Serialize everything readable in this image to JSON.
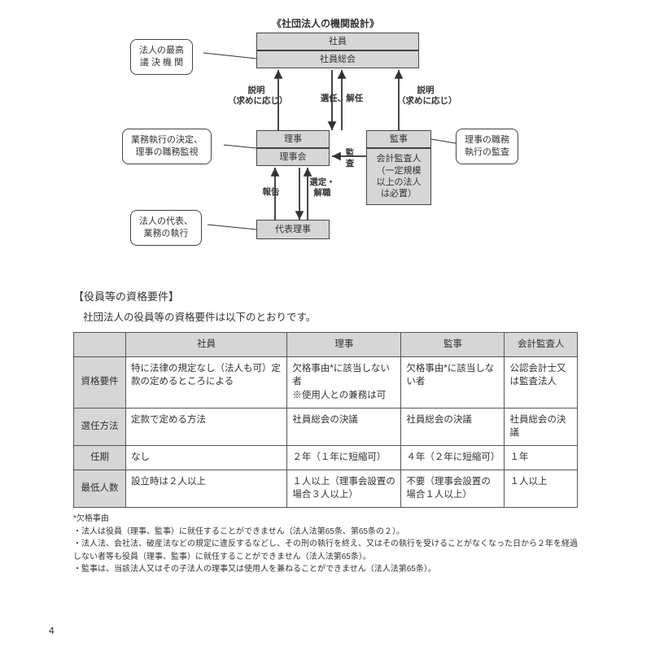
{
  "diagram": {
    "title": "《社団法人の機関設計》",
    "boxes": {
      "shain": {
        "label": "社員"
      },
      "sokai": {
        "label": "社員総会"
      },
      "riji": {
        "label": "理事"
      },
      "rijikai": {
        "label": "理事会"
      },
      "daihyo": {
        "label": "代表理事"
      },
      "kanji": {
        "label": "監事"
      },
      "kaikei": {
        "label": "会計監査人\n（一定規模\n以上の法人\nは必置）"
      }
    },
    "callouts": {
      "c1": "法人の最高\n議 決 機 関",
      "c2": "業務執行の決定、\n理事の職務監視",
      "c3": "法人の代表、\n業務の執行",
      "c4": "理事の職務\n執行の監査"
    },
    "edgeLabels": {
      "e1": "説明\n（求めに応じ）",
      "e2": "選任、解任",
      "e3": "説明\n（求めに応じ）",
      "e4": "監\n査",
      "e5": "選定・\n解職",
      "e6": "報告"
    }
  },
  "section": {
    "heading": "【役員等の資格要件】",
    "intro": "社団法人の役員等の資格要件は以下のとおりです。"
  },
  "table": {
    "columns": [
      "",
      "社員",
      "理事",
      "監事",
      "会計監査人"
    ],
    "rows": [
      {
        "h": "資格要件",
        "c": [
          "特に法律の規定なし（法人も可）定款の定めるところによる",
          "欠格事由*に該当しない者\n※使用人との兼務は可",
          "欠格事由*に該当しない者",
          "公認会計士又は監査法人"
        ]
      },
      {
        "h": "選任方法",
        "c": [
          "定款で定める方法",
          "社員総会の決議",
          "社員総会の決議",
          "社員総会の決議"
        ]
      },
      {
        "h": "任期",
        "c": [
          "なし",
          "２年（１年に短縮可）",
          "４年（２年に短縮可）",
          "１年"
        ]
      },
      {
        "h": "最低人数",
        "c": [
          "設立時は２人以上",
          "１人以上（理事会設置の場合３人以上）",
          "不要（理事会設置の場合１人以上）",
          "１人以上"
        ]
      }
    ]
  },
  "footnotes": {
    "lead": "*欠格事由",
    "items": [
      "・法人は役員（理事、監事）に就任することができません（法人法第65条、第65条の２）。",
      "・法人法、会社法、破産法などの規定に違反するなどし、その刑の執行を終え、又はその執行を受けることがなくなった日から２年を経過しない者等も役員（理事、監事）に就任することができません（法人法第65条）。",
      "・監事は、当該法人又はその子法人の理事又は使用人を兼ねることができません（法人法第65条）。"
    ]
  },
  "pageNumber": "4"
}
